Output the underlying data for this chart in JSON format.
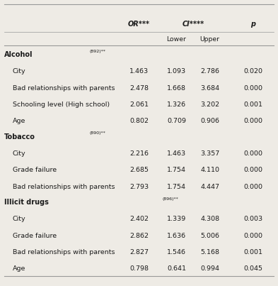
{
  "background_color": "#eeebe5",
  "text_color": "#1a1a1a",
  "line_color": "#999999",
  "col_OR": 0.5,
  "col_Lower": 0.635,
  "col_Upper": 0.755,
  "col_p": 0.91,
  "col_label": 0.015,
  "col_indent": 0.045,
  "header_fontsize": 7.0,
  "row_fontsize": 6.8,
  "section_fontsize": 7.0,
  "sections": [
    {
      "header": "Alcohol",
      "superscript": "(892)**",
      "rows": [
        {
          "label": "City",
          "OR": "1.463",
          "Lower": "1.093",
          "Upper": "2.786",
          "p": "0.020"
        },
        {
          "label": "Bad relationships with parents",
          "OR": "2.478",
          "Lower": "1.668",
          "Upper": "3.684",
          "p": "0.000"
        },
        {
          "label": "Schooling level (High school)",
          "OR": "2.061",
          "Lower": "1.326",
          "Upper": "3.202",
          "p": "0.001"
        },
        {
          "label": "Age",
          "OR": "0.802",
          "Lower": "0.709",
          "Upper": "0.906",
          "p": "0.000"
        }
      ]
    },
    {
      "header": "Tobacco",
      "superscript": "(890)**",
      "rows": [
        {
          "label": "City",
          "OR": "2.216",
          "Lower": "1.463",
          "Upper": "3.357",
          "p": "0.000"
        },
        {
          "label": "Grade failure",
          "OR": "2.685",
          "Lower": "1.754",
          "Upper": "4.110",
          "p": "0.000"
        },
        {
          "label": "Bad relationships with parents",
          "OR": "2.793",
          "Lower": "1.754",
          "Upper": "4.447",
          "p": "0.000"
        }
      ]
    },
    {
      "header": "Illicit drugs",
      "superscript": "(896)**",
      "rows": [
        {
          "label": "City",
          "OR": "2.402",
          "Lower": "1.339",
          "Upper": "4.308",
          "p": "0.003"
        },
        {
          "label": "Grade failure",
          "OR": "2.862",
          "Lower": "1.636",
          "Upper": "5.006",
          "p": "0.000"
        },
        {
          "label": "Bad relationships with parents",
          "OR": "2.827",
          "Lower": "1.546",
          "Upper": "5.168",
          "p": "0.001"
        },
        {
          "label": "Age",
          "OR": "0.798",
          "Lower": "0.641",
          "Upper": "0.994",
          "p": "0.045"
        }
      ]
    }
  ]
}
